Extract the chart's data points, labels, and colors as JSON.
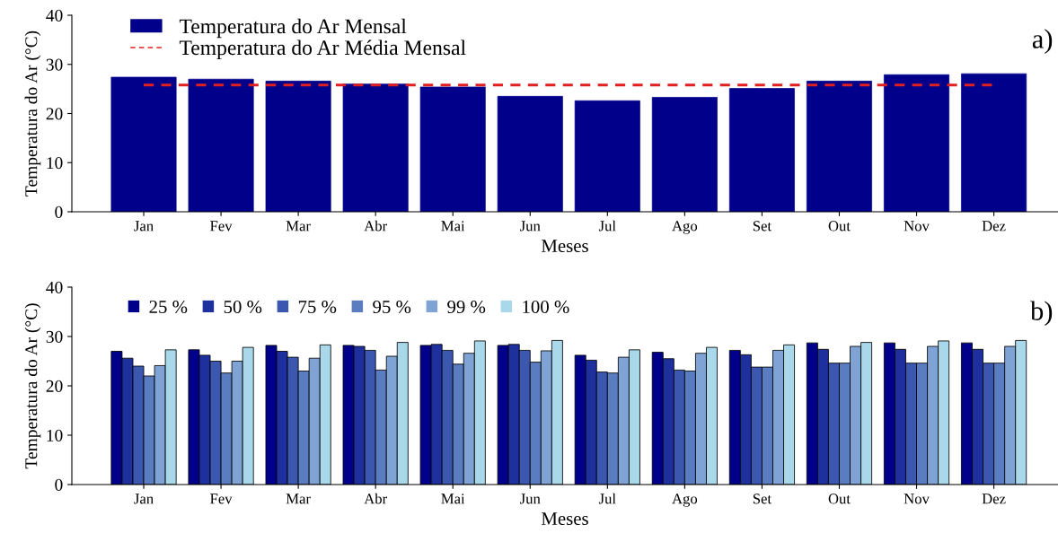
{
  "chart_data": [
    {
      "type": "bar",
      "xlabel": "Meses",
      "ylabel": "Temperatura do Ar (°C)",
      "categories": [
        "Jan",
        "Fev",
        "Mar",
        "Abr",
        "Mai",
        "Jun",
        "Jul",
        "Ago",
        "Set",
        "Out",
        "Nov",
        "Dez"
      ],
      "series": [
        {
          "name": "Temperatura do Ar Mensal",
          "color": "#00008b",
          "values": [
            27.4,
            27.0,
            26.6,
            26.0,
            25.4,
            23.5,
            22.6,
            23.3,
            25.1,
            26.6,
            27.9,
            28.1
          ]
        }
      ],
      "ref_lines": [
        {
          "axis": "y",
          "value": 25.8,
          "label": "Temperatura do Ar Média Mensal",
          "color": "#e02020",
          "line_style": "dashed"
        }
      ],
      "ylim": [
        0,
        40
      ],
      "yticks": [
        0,
        10,
        20,
        30,
        40
      ],
      "legend": "top left",
      "grid": false,
      "annotations": [
        "a)"
      ]
    },
    {
      "type": "bar",
      "xlabel": "Meses",
      "ylabel": "Temperatura do Ar (°C)",
      "categories": [
        "Jan",
        "Fev",
        "Mar",
        "Abr",
        "Mai",
        "Jun",
        "Jul",
        "Ago",
        "Set",
        "Out",
        "Nov",
        "Dez"
      ],
      "series": [
        {
          "name": "25 %",
          "color": "#00008b",
          "values": [
            27.0,
            27.3,
            28.2,
            28.2,
            28.2,
            28.2,
            26.2,
            26.8,
            27.2,
            28.7,
            28.7,
            28.7
          ]
        },
        {
          "name": "50 %",
          "color": "#1e2f9e",
          "values": [
            25.6,
            26.2,
            27.0,
            28.0,
            28.4,
            28.4,
            25.2,
            25.5,
            26.3,
            27.4,
            27.4,
            27.4
          ]
        },
        {
          "name": "75 %",
          "color": "#3b57b0",
          "values": [
            24.0,
            25.0,
            25.8,
            27.2,
            27.2,
            27.2,
            22.8,
            23.2,
            23.8,
            24.6,
            24.6,
            24.6
          ]
        },
        {
          "name": "95 %",
          "color": "#5a7cc0",
          "values": [
            22.0,
            22.6,
            23.0,
            23.2,
            24.4,
            24.8,
            22.6,
            23.0,
            23.8,
            24.6,
            24.6,
            24.6
          ]
        },
        {
          "name": "99 %",
          "color": "#7fa3d4",
          "values": [
            24.1,
            25.0,
            25.6,
            26.0,
            26.6,
            27.1,
            25.8,
            26.6,
            27.2,
            28.0,
            28.0,
            28.0
          ]
        },
        {
          "name": "100 %",
          "color": "#a8d8ea",
          "values": [
            27.3,
            27.8,
            28.3,
            28.8,
            29.1,
            29.2,
            27.3,
            27.8,
            28.3,
            28.8,
            29.1,
            29.2
          ]
        }
      ],
      "ylim": [
        0,
        40
      ],
      "yticks": [
        0,
        10,
        20,
        30,
        40
      ],
      "legend": "top left",
      "grid": false,
      "annotations": [
        "b)"
      ]
    }
  ]
}
